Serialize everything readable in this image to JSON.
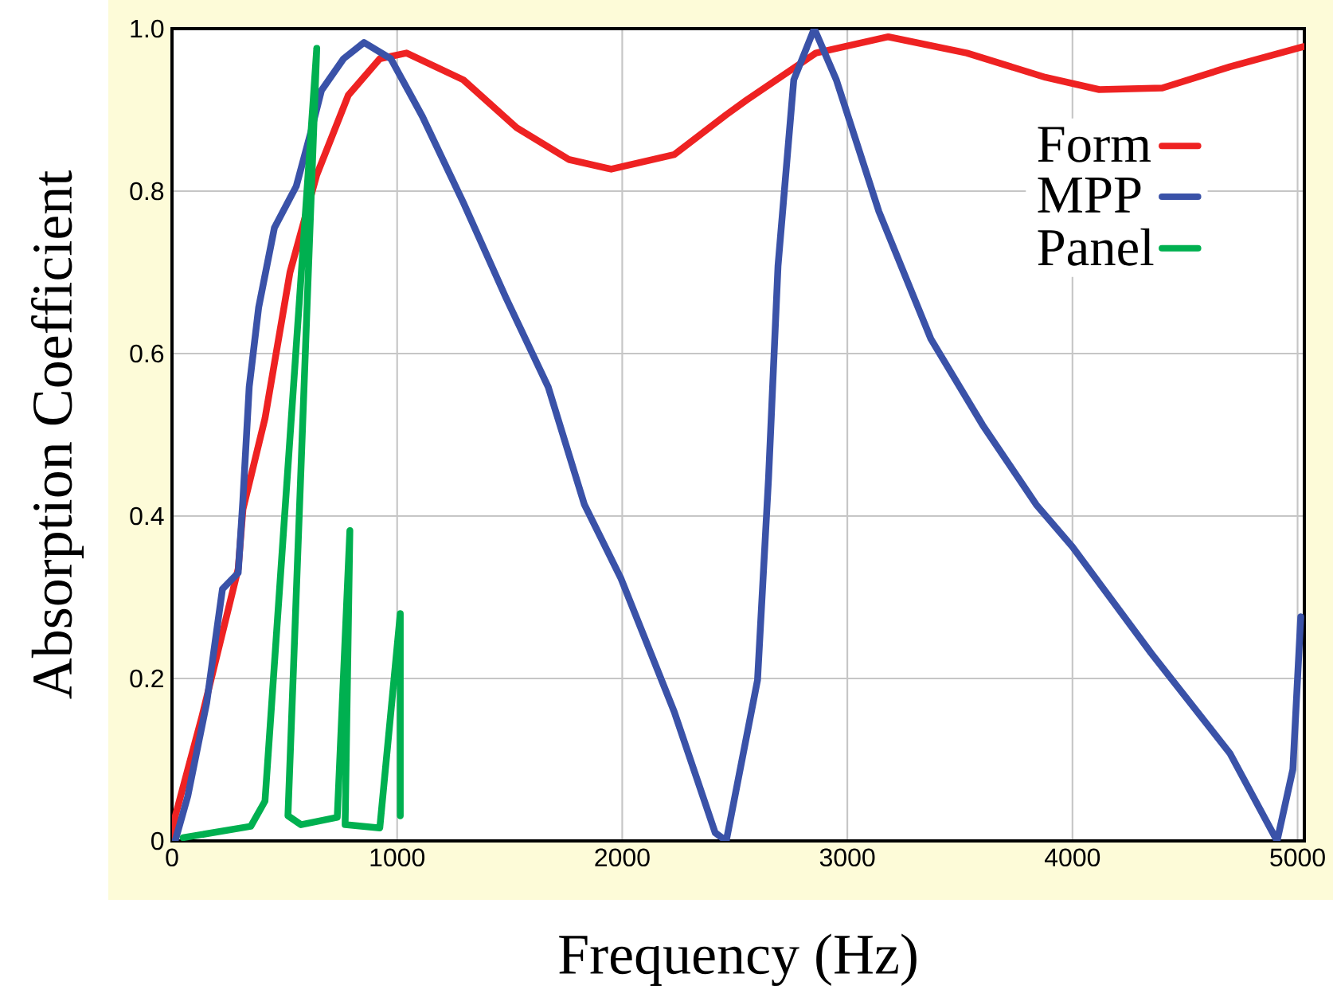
{
  "chart_data": {
    "type": "line",
    "xlabel": "Frequency (Hz)",
    "ylabel": "Absorption Coefficient",
    "xlim": [
      0,
      5030
    ],
    "ylim": [
      0,
      1
    ],
    "xticks": [
      0,
      1000,
      2000,
      3000,
      4000,
      5000
    ],
    "yticks": [
      0,
      0.2,
      0.4,
      0.6,
      0.8,
      {
        "value": 1,
        "label": "1.0"
      }
    ],
    "grid": true,
    "legend": "top right",
    "marker": "none",
    "line_style": "solid",
    "series": [
      {
        "name": "Form",
        "color": "#ee2222",
        "x": [
          0,
          14,
          133,
          294,
          315,
          413,
          524,
          643,
          783,
          923,
          1042,
          1294,
          1531,
          1762,
          1951,
          2231,
          2462,
          2552,
          2860,
          3182,
          3531,
          3881,
          4119,
          4399,
          4699,
          5028
        ],
        "values": [
          0,
          0.03,
          0.153,
          0.335,
          0.408,
          0.52,
          0.7,
          0.82,
          0.918,
          0.963,
          0.97,
          0.937,
          0.878,
          0.839,
          0.827,
          0.845,
          0.894,
          0.912,
          0.97,
          0.99,
          0.97,
          0.94,
          0.925,
          0.927,
          0.953,
          0.978
        ]
      },
      {
        "name": "MPP",
        "color": "#3a52a8",
        "x": [
          14,
          70,
          154,
          224,
          294,
          315,
          343,
          385,
          455,
          552,
          622,
          664,
          762,
          853,
          972,
          1112,
          1294,
          1483,
          1671,
          1832,
          1993,
          2231,
          2413,
          2462,
          2601,
          2650,
          2692,
          2762,
          2853,
          2951,
          3140,
          3371,
          3601,
          3839,
          4000,
          4350,
          4699,
          4909,
          4979,
          5014
        ],
        "values": [
          0,
          0.055,
          0.17,
          0.31,
          0.33,
          0.42,
          0.559,
          0.657,
          0.755,
          0.806,
          0.878,
          0.924,
          0.963,
          0.983,
          0.963,
          0.892,
          0.786,
          0.669,
          0.559,
          0.414,
          0.324,
          0.159,
          0.01,
          0,
          0.198,
          0.447,
          0.708,
          0.937,
          1.0,
          0.937,
          0.775,
          0.618,
          0.512,
          0.414,
          0.362,
          0.231,
          0.108,
          0,
          0.088,
          0.276
        ]
      },
      {
        "name": "Panel",
        "color": "#00b050",
        "x": [
          49,
          350,
          413,
          643,
          515,
          573,
          734,
          790,
          769,
          923,
          1014,
          1014
        ],
        "values": [
          0.004,
          0.018,
          0.049,
          0.976,
          0.031,
          0.02,
          0.029,
          0.382,
          0.02,
          0.016,
          0.28,
          0.031
        ]
      }
    ]
  }
}
